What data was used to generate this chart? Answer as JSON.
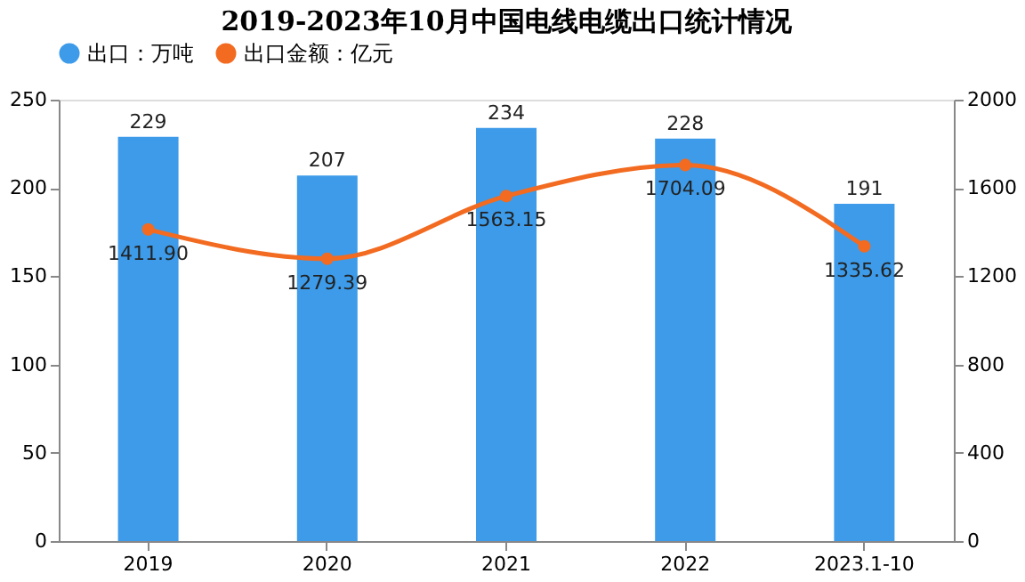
{
  "chart_data": {
    "type": "bar",
    "title": "2019-2023年10月中国电线电缆出口统计情况",
    "categories": [
      "2019",
      "2020",
      "2021",
      "2022",
      "2023.1-10"
    ],
    "series": [
      {
        "name": "出口：万吨",
        "color": "#3d9be9",
        "values": [
          229,
          207,
          234,
          228,
          191
        ],
        "value_labels": [
          "229",
          "207",
          "234",
          "228",
          "191"
        ]
      },
      {
        "name": "出口金额：亿元",
        "type": "line",
        "axis": "y2",
        "color": "#f26b21",
        "values": [
          1411.9,
          1279.39,
          1563.15,
          1704.09,
          1335.62
        ],
        "value_labels": [
          "1411.90",
          "1279.39",
          "1563.15",
          "1704.09",
          "1335.62"
        ]
      }
    ],
    "ylim": [
      0,
      250
    ],
    "yticks": [
      0,
      50,
      100,
      150,
      200,
      250
    ],
    "y2lim": [
      0,
      2000
    ],
    "y2ticks": [
      0,
      400,
      800,
      1200,
      1600,
      2000
    ],
    "legend": "top",
    "marker": "circle",
    "grid": false
  }
}
